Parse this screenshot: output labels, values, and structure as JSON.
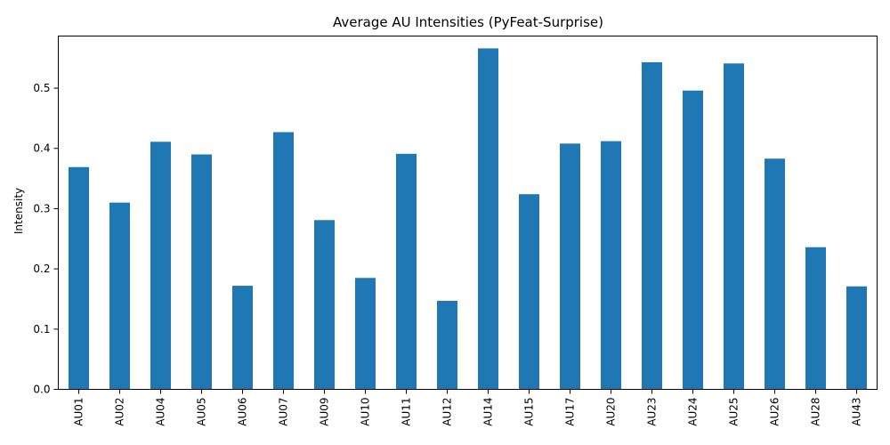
{
  "chart_data": {
    "type": "bar",
    "title": "Average AU Intensities (PyFeat-Surprise)",
    "xlabel": "",
    "ylabel": "Intensity",
    "ylim": [
      0,
      0.5865
    ],
    "yticks": [
      "0.0",
      "0.1",
      "0.2",
      "0.3",
      "0.4",
      "0.5"
    ],
    "grid": false,
    "categories": [
      "AU01",
      "AU02",
      "AU04",
      "AU05",
      "AU06",
      "AU07",
      "AU09",
      "AU10",
      "AU11",
      "AU12",
      "AU14",
      "AU15",
      "AU17",
      "AU20",
      "AU23",
      "AU24",
      "AU25",
      "AU26",
      "AU28",
      "AU43"
    ],
    "values": [
      0.369,
      0.31,
      0.411,
      0.39,
      0.172,
      0.427,
      0.281,
      0.185,
      0.391,
      0.147,
      0.566,
      0.324,
      0.408,
      0.412,
      0.543,
      0.496,
      0.541,
      0.383,
      0.236,
      0.171
    ],
    "bar_color": "#1f77b4"
  }
}
